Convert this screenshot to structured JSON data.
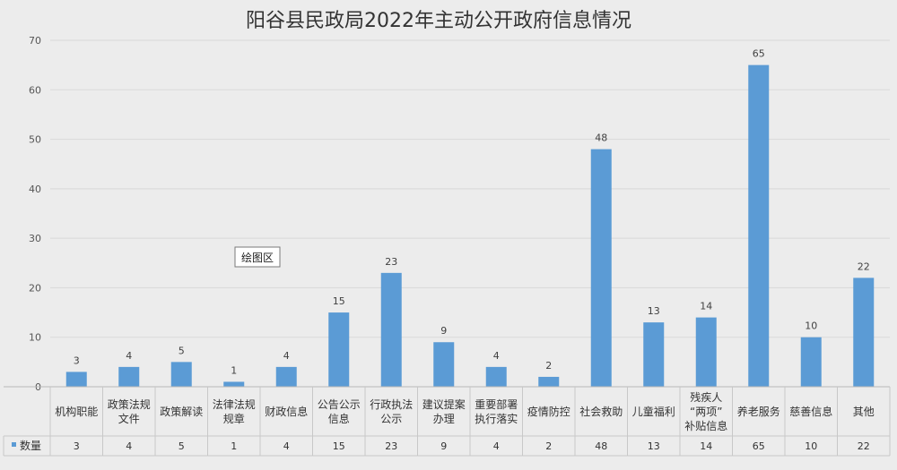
{
  "chart_data": {
    "type": "bar",
    "title": "阳谷县民政局2022年主动公开政府信息情况",
    "categories": [
      [
        "机构职能"
      ],
      [
        "政策法规",
        "文件"
      ],
      [
        "政策解读"
      ],
      [
        "法律法规",
        "规章"
      ],
      [
        "财政信息"
      ],
      [
        "公告公示",
        "信息"
      ],
      [
        "行政执法",
        "公示"
      ],
      [
        "建议提案",
        "办理"
      ],
      [
        "重要部署",
        "执行落实"
      ],
      [
        "疫情防控"
      ],
      [
        "社会救助"
      ],
      [
        "儿童福利"
      ],
      [
        "残疾人",
        "“两项”",
        "补贴信息"
      ],
      [
        "养老服务"
      ],
      [
        "慈善信息"
      ],
      [
        "其他"
      ]
    ],
    "series": [
      {
        "name": "数量",
        "values": [
          3,
          4,
          5,
          1,
          4,
          15,
          23,
          9,
          4,
          2,
          48,
          13,
          14,
          65,
          10,
          22
        ]
      }
    ],
    "ylim": [
      0,
      70
    ],
    "yticks": [
      0,
      10,
      20,
      30,
      40,
      50,
      60,
      70
    ],
    "grid": true,
    "data_table": true,
    "legend_position": "data-table-left",
    "colors": {
      "bar": "#5b9bd5",
      "grid": "#d9d9d9",
      "background": "#ececec"
    }
  },
  "tooltip": {
    "label": "绘图区"
  }
}
